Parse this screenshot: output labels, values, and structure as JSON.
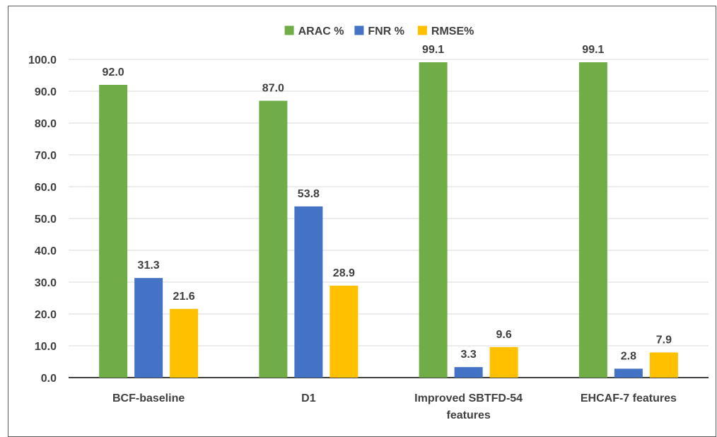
{
  "chart_data": {
    "type": "bar",
    "title": "",
    "xlabel": "",
    "ylabel": "",
    "ylim": [
      0,
      100
    ],
    "yticks": [
      "0.0",
      "10.0",
      "20.0",
      "30.0",
      "40.0",
      "50.0",
      "60.0",
      "70.0",
      "80.0",
      "90.0",
      "100.0"
    ],
    "grid": true,
    "legend_position": "top-center",
    "categories": [
      "BCF-baseline",
      "D1",
      "Improved SBTFD-54\nfeatures",
      "EHCAF-7 features"
    ],
    "series": [
      {
        "name": "ARAC %",
        "color": "#70ad47",
        "values": [
          92.0,
          87.0,
          99.1,
          99.1
        ],
        "labels": [
          "92.0",
          "87.0",
          "99.1",
          "99.1"
        ]
      },
      {
        "name": "FNR %",
        "color": "#4472c4",
        "values": [
          31.3,
          53.8,
          3.3,
          2.8
        ],
        "labels": [
          "31.3",
          "53.8",
          "3.3",
          "2.8"
        ]
      },
      {
        "name": "RMSE%",
        "color": "#ffc000",
        "values": [
          21.6,
          28.9,
          9.6,
          7.9
        ],
        "labels": [
          "21.6",
          "28.9",
          "9.6",
          "7.9"
        ]
      }
    ]
  }
}
